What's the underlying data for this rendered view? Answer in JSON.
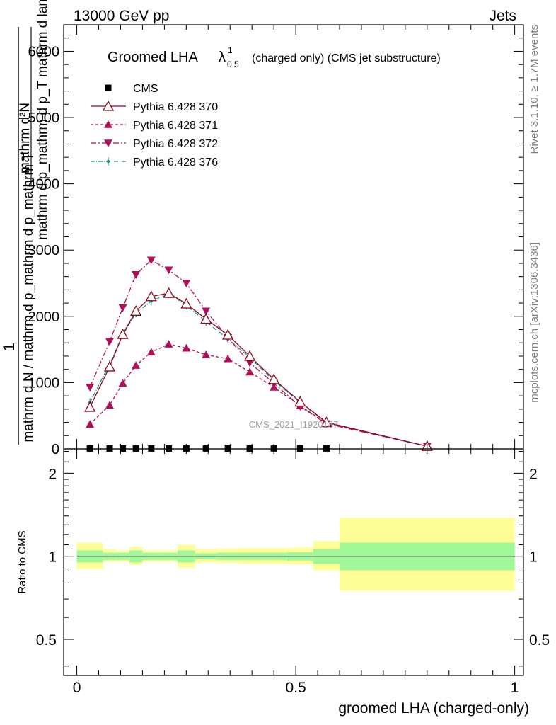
{
  "header": {
    "left": "13000 GeV pp",
    "right": "Jets"
  },
  "side_text": {
    "top": "Rivet 3.1.10, ≥ 1.7M events",
    "bottom": "mcplots.cern.ch [arXiv:1306.3436]"
  },
  "watermark": "CMS_2021_I1920187",
  "chart_data": [
    {
      "type": "line",
      "title_main": "Groomed LHA",
      "title_lambda": "λ",
      "title_sup": "1",
      "title_sub": "0.5",
      "title_rest": "(charged only) (CMS jet substructure)",
      "ylabel_top": "1",
      "ylabel_bottom": "mathrm d N / mathrm d p_mathrm d p_mathrm T",
      "ylabel_num": "mathrm d²N",
      "ylabel_den": "mathrm d p_mathrm d p_T mathrm d lambda",
      "xlim": [
        -0.03,
        1.02
      ],
      "ylim": [
        0,
        6400
      ],
      "y_ticks": [
        0,
        1000,
        2000,
        3000,
        4000,
        5000,
        6000
      ],
      "y_tick_labels": [
        "0",
        "1000",
        "2000",
        "3000",
        "4000",
        "5000",
        "6000"
      ],
      "series": [
        {
          "name": "CMS",
          "color": "#000000",
          "marker": "square",
          "x": [
            0.03,
            0.075,
            0.105,
            0.135,
            0.17,
            0.21,
            0.25,
            0.295,
            0.345,
            0.395,
            0.45,
            0.51,
            0.57
          ],
          "y": [
            6,
            6,
            6,
            6,
            6,
            6,
            6,
            6,
            6,
            6,
            6,
            6,
            6
          ]
        },
        {
          "name": "Pythia 6.428 370",
          "color": "#8b0a1e",
          "marker": "triangle-open",
          "dash": "solid",
          "x": [
            0.03,
            0.075,
            0.105,
            0.135,
            0.17,
            0.21,
            0.25,
            0.295,
            0.345,
            0.395,
            0.45,
            0.51,
            0.57,
            0.8
          ],
          "y": [
            630,
            1240,
            1730,
            2080,
            2300,
            2350,
            2190,
            1960,
            1720,
            1400,
            1050,
            710,
            400,
            40
          ]
        },
        {
          "name": "Pythia 6.428 371",
          "color": "#b0105a",
          "marker": "triangle-up",
          "dash": "4,3",
          "x": [
            0.03,
            0.075,
            0.105,
            0.135,
            0.17,
            0.21,
            0.25,
            0.295,
            0.345,
            0.395,
            0.45,
            0.51,
            0.57,
            0.8
          ],
          "y": [
            370,
            660,
            990,
            1260,
            1460,
            1580,
            1520,
            1420,
            1360,
            1160,
            930,
            650,
            390,
            40
          ]
        },
        {
          "name": "Pythia 6.428 372",
          "color": "#b0105a",
          "marker": "triangle-down",
          "dash": "8,3,2,3",
          "x": [
            0.03,
            0.075,
            0.105,
            0.135,
            0.17,
            0.21,
            0.25,
            0.295,
            0.345,
            0.395,
            0.45,
            0.51,
            0.57,
            0.8
          ],
          "y": [
            930,
            1620,
            2130,
            2630,
            2850,
            2700,
            2500,
            2080,
            1680,
            1300,
            990,
            640,
            380,
            40
          ]
        },
        {
          "name": "Pythia 6.428 376",
          "color": "#1a9080",
          "marker": "dot",
          "dash": "6,2,1,2",
          "x": [
            0.03,
            0.075,
            0.105,
            0.135,
            0.17,
            0.21,
            0.25,
            0.295,
            0.345,
            0.395,
            0.45,
            0.51,
            0.57,
            0.8
          ],
          "y": [
            700,
            1280,
            1720,
            2050,
            2230,
            2340,
            2170,
            1920,
            1660,
            1380,
            1030,
            700,
            400,
            40
          ]
        }
      ]
    },
    {
      "type": "area",
      "ylabel": "Ratio to CMS",
      "xlabel": "groomed LHA (charged-only)",
      "xlim": [
        -0.03,
        1.02
      ],
      "ylim": [
        0.37,
        2.45
      ],
      "y_ticks": [
        0.5,
        1,
        2
      ],
      "y_tick_labels": [
        "0.5",
        "1",
        "2"
      ],
      "x_ticks": [
        0,
        0.5,
        1
      ],
      "x_tick_labels": [
        "0",
        "0.5",
        "1"
      ],
      "bin_edges": [
        0,
        0.06,
        0.09,
        0.12,
        0.15,
        0.19,
        0.23,
        0.27,
        0.32,
        0.37,
        0.42,
        0.48,
        0.54,
        0.6,
        1.0
      ],
      "green_band": [
        [
          0.95,
          1.05
        ],
        [
          0.97,
          1.03
        ],
        [
          0.97,
          1.03
        ],
        [
          0.95,
          1.05
        ],
        [
          0.97,
          1.03
        ],
        [
          0.97,
          1.03
        ],
        [
          0.95,
          1.05
        ],
        [
          0.975,
          1.025
        ],
        [
          0.97,
          1.03
        ],
        [
          0.97,
          1.03
        ],
        [
          0.97,
          1.03
        ],
        [
          0.965,
          1.035
        ],
        [
          0.94,
          1.06
        ],
        [
          0.89,
          1.12
        ]
      ],
      "yellow_band": [
        [
          0.9,
          1.12
        ],
        [
          0.955,
          1.06
        ],
        [
          0.955,
          1.05
        ],
        [
          0.93,
          1.08
        ],
        [
          0.955,
          1.05
        ],
        [
          0.955,
          1.05
        ],
        [
          0.91,
          1.1
        ],
        [
          0.95,
          1.06
        ],
        [
          0.945,
          1.065
        ],
        [
          0.94,
          1.07
        ],
        [
          0.94,
          1.07
        ],
        [
          0.935,
          1.075
        ],
        [
          0.89,
          1.135
        ],
        [
          0.75,
          1.38
        ]
      ],
      "reference": 1,
      "green_color": "#a0f898",
      "yellow_color": "#ffff98"
    }
  ]
}
